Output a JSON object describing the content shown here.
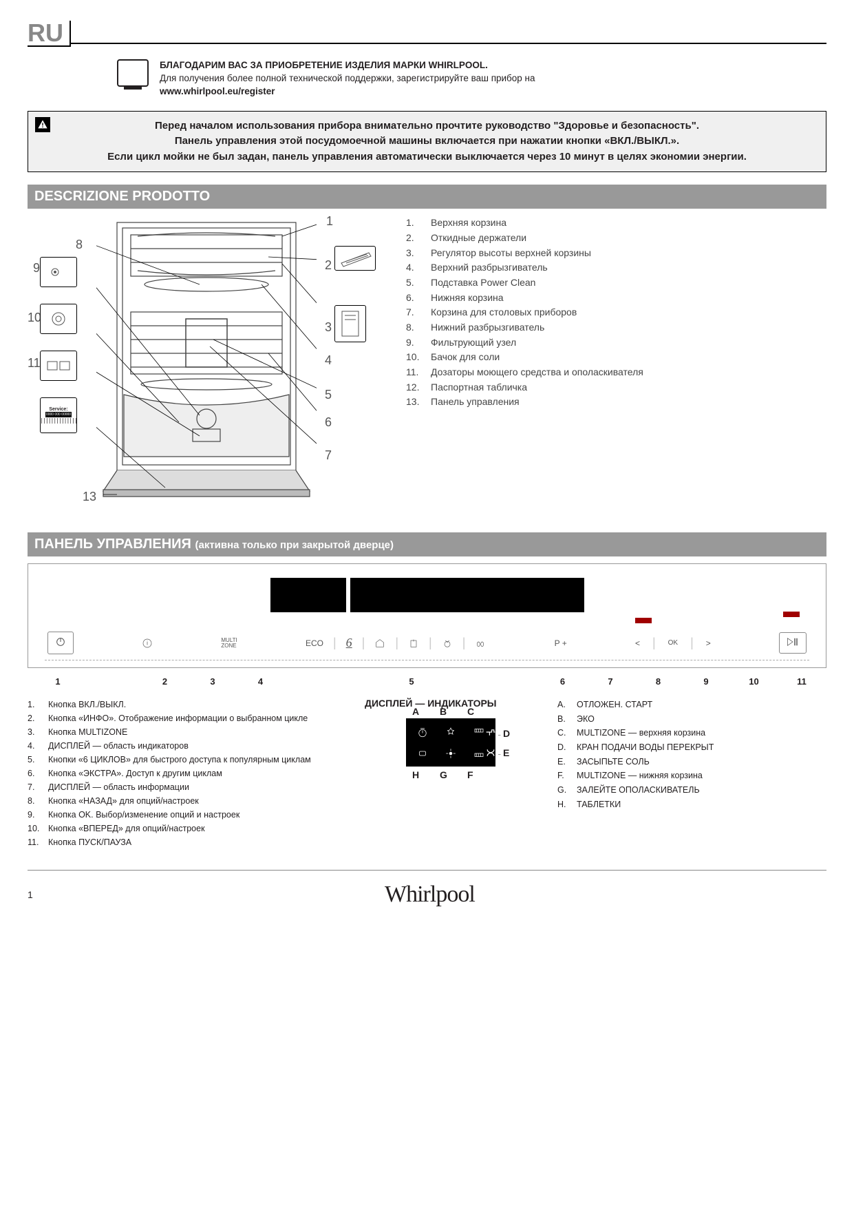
{
  "lang_code": "RU",
  "intro": {
    "title": "БЛАГОДАРИМ ВАС ЗА ПРИОБРЕТЕНИЕ ИЗДЕЛИЯ МАРКИ WHIRLPOOL.",
    "body": "Для получения более полной технической поддержки, зарегистрируйте ваш прибор на",
    "url": "www.whirlpool.eu/register"
  },
  "warning": {
    "line1": "Перед началом использования прибора внимательно прочтите руководство \"Здоровье и безопасность\".",
    "line2": "Панель управления этой посудомоечной машины включается при нажатии кнопки «ВКЛ./ВЫКЛ.».",
    "line3": "Если цикл мойки не был задан, панель управления автоматически выключается через 10 минут в целях экономии энергии."
  },
  "section1_title": "DESCRIZIONE PRODOTTO",
  "parts": [
    {
      "n": "1.",
      "t": "Верхняя корзина"
    },
    {
      "n": "2.",
      "t": "Откидные держатели"
    },
    {
      "n": "3.",
      "t": "Регулятор высоты верхней корзины"
    },
    {
      "n": "4.",
      "t": "Верхний разбрызгиватель"
    },
    {
      "n": "5.",
      "t": "Подставка Power Clean"
    },
    {
      "n": "6.",
      "t": "Нижняя корзина"
    },
    {
      "n": "7.",
      "t": "Корзина для столовых приборов"
    },
    {
      "n": "8.",
      "t": "Нижний разбрызгиватель"
    },
    {
      "n": "9.",
      "t": "Фильтрующий узел"
    },
    {
      "n": "10.",
      "t": "Бачок для соли"
    },
    {
      "n": "11.",
      "t": "Дозаторы моющего средства и ополаскивателя"
    },
    {
      "n": "12.",
      "t": "Паспортная табличка"
    },
    {
      "n": "13.",
      "t": "Панель управления"
    }
  ],
  "section2_title": "ПАНЕЛЬ УПРАВЛЕНИЯ",
  "section2_sub": "(активна только при закрытой дверце)",
  "panel_buttons": {
    "multizone": "MULTI\nZONE",
    "eco": "ECO",
    "pplus": "P +",
    "ok": "OK"
  },
  "panel_nums": [
    "1",
    "2",
    "3",
    "4",
    "5",
    "6",
    "7",
    "8",
    "9",
    "10",
    "11"
  ],
  "panel_list": [
    {
      "n": "1.",
      "t": "Кнопка ВКЛ./ВЫКЛ."
    },
    {
      "n": "2.",
      "t": "Кнопка «ИНФО». Отображение информации о выбранном цикле"
    },
    {
      "n": "3.",
      "t": "Кнопка MULTIZONE"
    },
    {
      "n": "4.",
      "t": "ДИСПЛЕЙ — область индикаторов"
    },
    {
      "n": "5.",
      "t": "Кнопки «6 ЦИКЛОВ» для быстрого доступа к популярным циклам"
    },
    {
      "n": "6.",
      "t": "Кнопка «ЭКСТРА». Доступ к другим циклам"
    },
    {
      "n": "7.",
      "t": "ДИСПЛЕЙ — область информации"
    },
    {
      "n": "8.",
      "t": "Кнопка «НАЗАД» для опций/настроек"
    },
    {
      "n": "9.",
      "t": "Кнопка OK. Выбор/изменение опций и настроек"
    },
    {
      "n": "10.",
      "t": "Кнопка «ВПЕРЕД» для опций/настроек"
    },
    {
      "n": "11.",
      "t": "Кнопка ПУСК/ПАУЗА"
    }
  ],
  "disp_title": "ДИСПЛЕЙ — ИНДИКАТОРЫ",
  "disp_letters": {
    "A": "A",
    "B": "B",
    "C": "C",
    "D": "D",
    "E": "E",
    "F": "F",
    "G": "G",
    "H": "H"
  },
  "disp_list": [
    {
      "n": "A.",
      "t": "ОТЛОЖЕН. СТАРТ"
    },
    {
      "n": "B.",
      "t": "ЭКО"
    },
    {
      "n": "C.",
      "t": "MULTIZONE — верхняя корзина"
    },
    {
      "n": "D.",
      "t": "КРАН ПОДАЧИ ВОДЫ ПЕРЕКРЫТ"
    },
    {
      "n": "E.",
      "t": "ЗАСЫПЬТЕ СОЛЬ"
    },
    {
      "n": "F.",
      "t": "MULTIZONE — нижняя корзина"
    },
    {
      "n": "G.",
      "t": "ЗАЛЕЙТЕ ОПОЛАСКИВАТЕЛЬ"
    },
    {
      "n": "H.",
      "t": "ТАБЛЕТКИ"
    }
  ],
  "page_num": "1",
  "brand": "Whirlpool",
  "colors": {
    "gray_bar": "#999999",
    "light_gray": "#f0f0f0",
    "text": "#231f20",
    "red": "#a00000"
  }
}
